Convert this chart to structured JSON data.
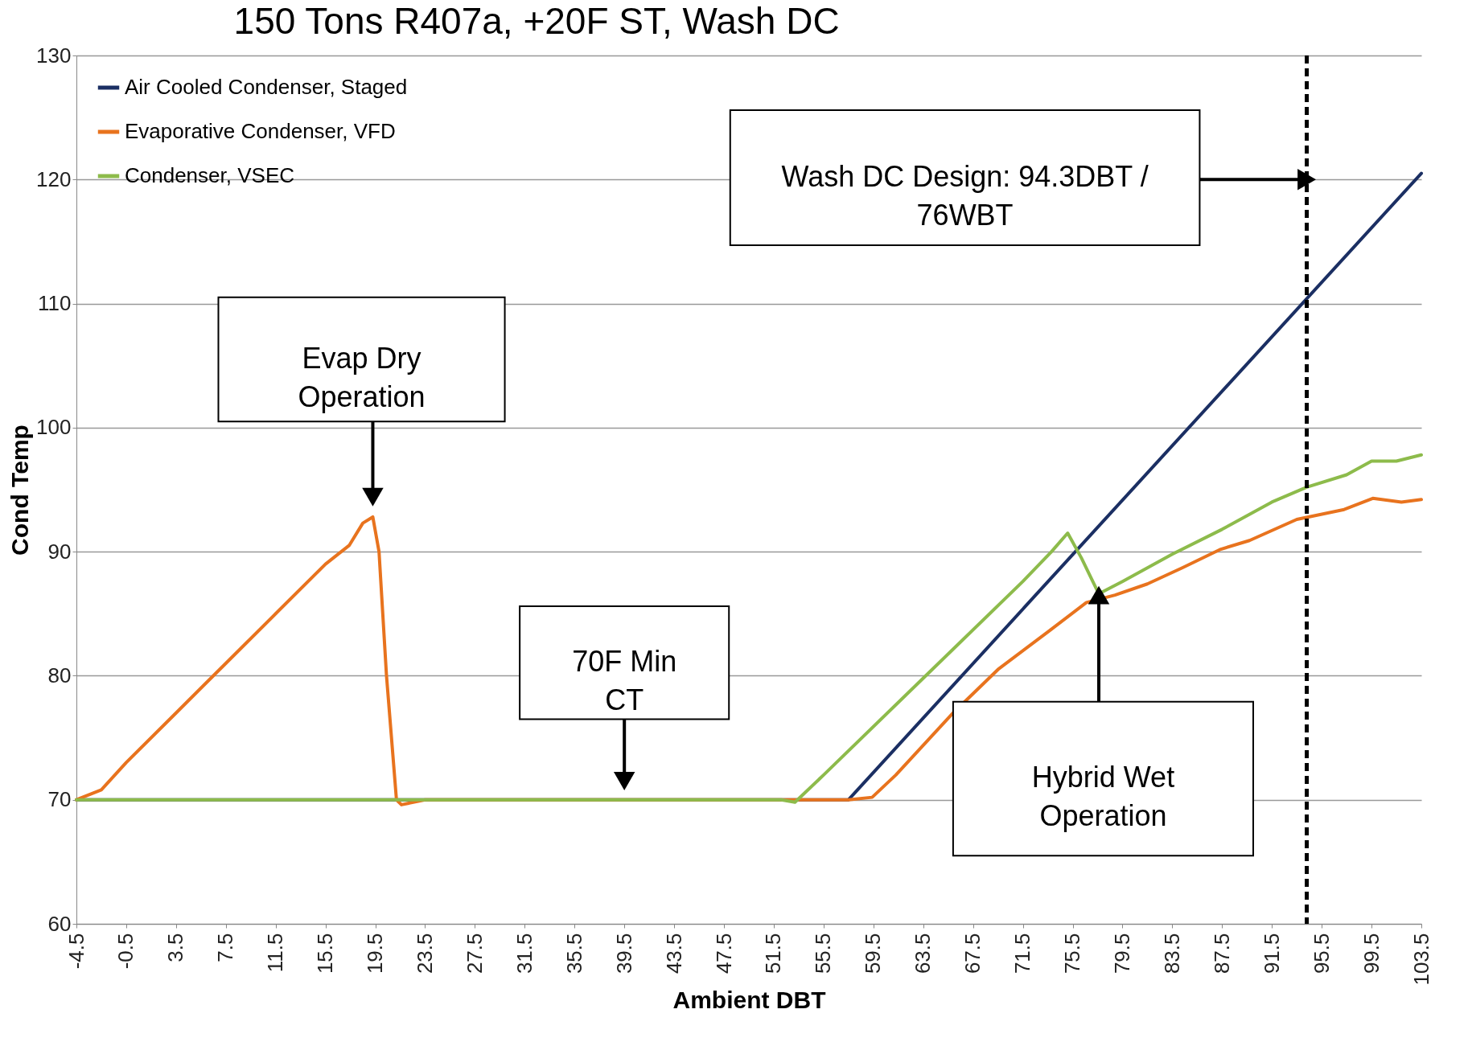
{
  "chart_data": {
    "type": "line",
    "title": "150 Tons R407a, +20F ST, Wash DC",
    "xlabel": "Ambient DBT",
    "ylabel": "Cond Temp",
    "xlim": [
      -4.5,
      103.5
    ],
    "xticks": [
      -4.5,
      -0.5,
      3.5,
      7.5,
      11.5,
      15.5,
      19.5,
      23.5,
      27.5,
      31.5,
      35.5,
      39.5,
      43.5,
      47.5,
      51.5,
      55.5,
      59.5,
      63.5,
      67.5,
      71.5,
      75.5,
      79.5,
      83.5,
      87.5,
      91.5,
      95.5,
      99.5,
      103.5
    ],
    "ylim": [
      60,
      130
    ],
    "yticks": [
      60,
      70,
      80,
      90,
      100,
      110,
      120,
      130
    ],
    "grid": "y",
    "legend": "top left",
    "marker": "none",
    "line_style": "solid",
    "series": [
      {
        "name": "Air Cooled Condenser, Staged",
        "color": "#1b2f63",
        "x": [
          -4.5,
          57.5,
          103.5
        ],
        "values": [
          70,
          70,
          120.5
        ]
      },
      {
        "name": "Evaporative Condenser, VFD",
        "color": "#e8731e",
        "x": [
          -4.5,
          -2.5,
          -0.5,
          3.5,
          7.5,
          11.5,
          15.5,
          17.4,
          18.5,
          19.3,
          19.8,
          20.4,
          21.2,
          21.6,
          23.5,
          57.5,
          59.4,
          61.3,
          65.9,
          69.5,
          73.6,
          76.6,
          78.9,
          81.5,
          84.3,
          87.4,
          89.7,
          93.5,
          97.3,
          99.6,
          101.9,
          103.5
        ],
        "values": [
          70,
          70.8,
          73,
          77,
          81,
          85,
          89,
          90.5,
          92.3,
          92.8,
          90,
          80,
          70,
          69.6,
          70,
          70,
          70.2,
          72,
          77,
          80.5,
          83.6,
          85.9,
          86.5,
          87.4,
          88.7,
          90.2,
          90.9,
          92.6,
          93.4,
          94.3,
          94,
          94.2
        ]
      },
      {
        "name": "Condenser, VSEC",
        "color": "#8dbb4b",
        "x": [
          -4.5,
          52.1,
          53.2,
          55.5,
          63.5,
          71.5,
          73.8,
          75.1,
          76.2,
          77.6,
          79.5,
          83.5,
          87.5,
          91.5,
          94.3,
          97.5,
          99.5,
          101.5,
          103.5
        ],
        "values": [
          70,
          70,
          69.8,
          72,
          79.8,
          87.6,
          90,
          91.5,
          89.5,
          86.6,
          87.6,
          89.8,
          91.8,
          94,
          95.2,
          96.2,
          97.3,
          97.3,
          97.8
        ]
      }
    ],
    "ref_lines": [
      {
        "axis": "x",
        "value": 94.3,
        "color": "#000000",
        "line_style": "dashed"
      }
    ],
    "annotations": [
      {
        "text": "Evap Dry\nOperation",
        "x": 19.3,
        "y": 94.4
      },
      {
        "text": "70F Min\nCT",
        "x": 39.5,
        "y": 71.5
      },
      "Hybrid Wet\nOperation",
      "Wash DC Design: 94.3DBT /\n76WBT"
    ]
  }
}
